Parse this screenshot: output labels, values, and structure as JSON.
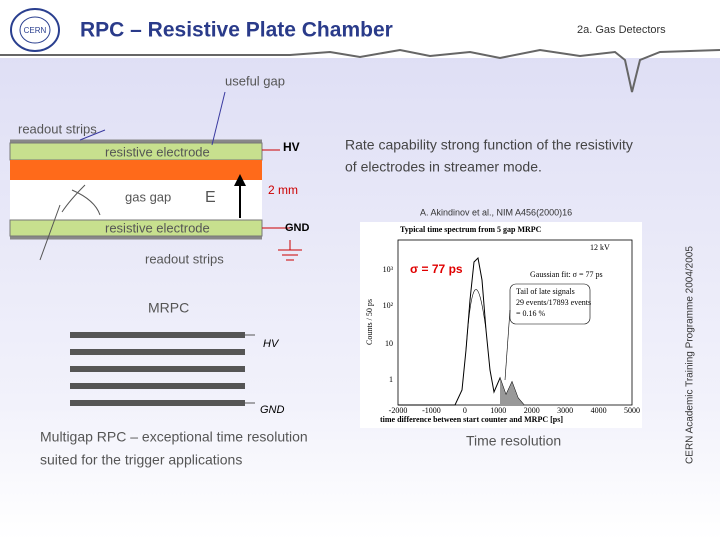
{
  "header": {
    "title": "RPC – Resistive Plate Chamber",
    "section": "2a. Gas Detectors"
  },
  "side_note": "CERN Academic Training Programme 2004/2005",
  "logo": "CERN",
  "rpc_diagram": {
    "useful_gap": "useful gap",
    "readout_top": "readout strips",
    "electrode_top": "resistive electrode",
    "hv": "HV",
    "gas_gap": "gas gap",
    "field": "E",
    "gap_size": "2 mm",
    "electrode_bottom": "resistive electrode",
    "gnd": "GND",
    "readout_bottom": "readout strips"
  },
  "rate_text": [
    "Rate capability strong function of the resistivity",
    "of electrodes in streamer mode."
  ],
  "reference": "A. Akindinov et al., NIM A456(2000)16",
  "mrpc": {
    "title": "MRPC",
    "hv": "HV",
    "gnd": "GND",
    "caption": [
      "Multigap RPC – exceptional time resolution",
      "suited for the trigger applications"
    ]
  },
  "plot": {
    "title": "Typical time spectrum from 5 gap MRPC",
    "voltage": "12 kV",
    "sigma": "σ = 77 ps",
    "fit": "Gaussian fit: σ = 77 ps",
    "tail": [
      "Tail of late signals",
      "29 events/17893 events",
      "= 0.16 %"
    ],
    "ylabel": "Counts / 50 ps",
    "xlabel": "time difference between start counter and MRPC [ps]",
    "xticks": [
      "-2000",
      "-1000",
      "0",
      "1000",
      "2000",
      "3000",
      "4000",
      "5000"
    ],
    "yticks": [
      "10³",
      "10²",
      "10",
      "1"
    ]
  },
  "time_caption": "Time resolution"
}
